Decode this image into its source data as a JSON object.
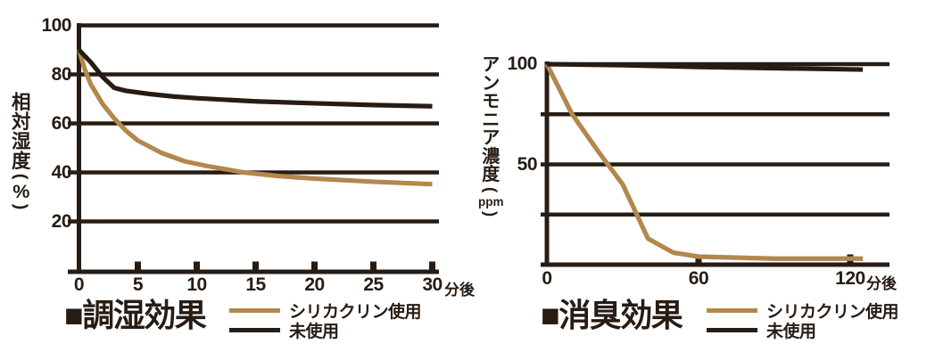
{
  "colors": {
    "ink": "#271c14",
    "brown": "#b3874d",
    "background": "#ffffff"
  },
  "chart_data": [
    {
      "type": "line",
      "title": "■調湿効果",
      "ylabel": "相対湿度(%)",
      "x_unit": "分後",
      "xlim": [
        0,
        30
      ],
      "ylim": [
        0,
        100
      ],
      "grid": "horizontal",
      "legend_position": "right-of-title",
      "x_ticks": [
        {
          "value": 0,
          "label": "0"
        },
        {
          "value": 5,
          "label": "5"
        },
        {
          "value": 10,
          "label": "10"
        },
        {
          "value": 15,
          "label": "15"
        },
        {
          "value": 20,
          "label": "20"
        },
        {
          "value": 25,
          "label": "25"
        },
        {
          "value": 30,
          "label": "30"
        }
      ],
      "y_ticks": [
        {
          "value": 100,
          "label": "100"
        },
        {
          "value": 80,
          "label": "80"
        },
        {
          "value": 60,
          "label": "60"
        },
        {
          "value": 40,
          "label": "40"
        },
        {
          "value": 20,
          "label": "20"
        }
      ],
      "y_grid": [
        20,
        40,
        60,
        80,
        100
      ],
      "series": [
        {
          "name": "シリカクリン使用",
          "color": "#b3874d",
          "x": [
            0,
            0.5,
            1,
            2,
            3,
            4,
            5,
            7,
            9,
            11,
            14,
            17,
            20,
            25,
            30
          ],
          "y": [
            90,
            82,
            76,
            68,
            62,
            57,
            53,
            48,
            44.5,
            42.5,
            40,
            38.5,
            37.5,
            36.2,
            35.2
          ]
        },
        {
          "name": "未使用",
          "color": "#271c14",
          "x": [
            0,
            1,
            2,
            3,
            4,
            6,
            8,
            10,
            15,
            20,
            25,
            30
          ],
          "y": [
            90,
            85,
            79,
            74.5,
            73.3,
            72,
            71,
            70.3,
            69,
            68.2,
            67.5,
            67
          ]
        }
      ]
    },
    {
      "type": "line",
      "title": "■消臭効果",
      "ylabel": "アンモニア濃度(ppm)",
      "x_unit": "分後",
      "xlim": [
        0,
        120
      ],
      "ylim": [
        0,
        100
      ],
      "grid": "horizontal",
      "legend_position": "right-of-title",
      "x_ticks": [
        {
          "value": 0,
          "label": "0"
        },
        {
          "value": 60,
          "label": "60"
        },
        {
          "value": 120,
          "label": "120"
        }
      ],
      "y_ticks": [
        {
          "value": 100,
          "label": "100"
        },
        {
          "value": 50,
          "label": "50"
        }
      ],
      "y_grid": [
        25,
        50,
        75,
        100
      ],
      "series": [
        {
          "name": "シリカクリン使用",
          "color": "#b3874d",
          "x": [
            0,
            10,
            20,
            30,
            40,
            50,
            60,
            90,
            125
          ],
          "y": [
            100,
            75,
            57,
            40,
            13,
            6,
            4,
            3,
            3
          ]
        },
        {
          "name": "未使用",
          "color": "#271c14",
          "x": [
            0,
            30,
            60,
            90,
            125
          ],
          "y": [
            100,
            99.5,
            98.6,
            98,
            97.3
          ]
        }
      ]
    }
  ]
}
